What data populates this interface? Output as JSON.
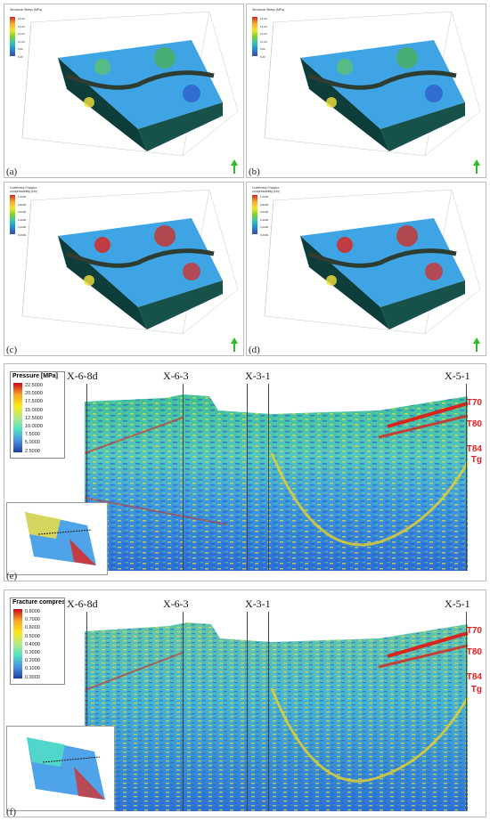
{
  "panels_3d": [
    {
      "label": "(a)",
      "legend_title": "Structural\nStress (MPa)",
      "ticks": [
        "16.00",
        "14.00",
        "12.00",
        "10.00",
        "8.00",
        "6.00"
      ]
    },
    {
      "label": "(b)",
      "legend_title": "Structural\nStress (MPa)",
      "ticks": [
        "16.00",
        "14.00",
        "12.00",
        "10.00",
        "8.00",
        "6.00"
      ]
    },
    {
      "label": "(c)",
      "legend_title": "Coefficient\nFracture compressibility (l/m)",
      "ticks": [
        "1.0000",
        "0.8000",
        "0.6000",
        "0.4000",
        "0.2000",
        "0.0000"
      ]
    },
    {
      "label": "(d)",
      "legend_title": "Coefficient\nFracture compressibility (l/m)",
      "ticks": [
        "1.0000",
        "0.8000",
        "0.6000",
        "0.4000",
        "0.2000",
        "0.0000"
      ]
    }
  ],
  "section_e": {
    "label": "(e)",
    "legend_title": "Pressure [MPa]",
    "ticks": [
      "22.5000",
      "20.0000",
      "17.5000",
      "15.0000",
      "12.5000",
      "10.0000",
      "7.5000",
      "5.0000",
      "2.5000"
    ],
    "wells": [
      "X-6-8d",
      "X-6-3",
      "X-3-1",
      "X-5-1"
    ],
    "horizons": [
      "T70",
      "T80",
      "T84",
      "Tg"
    ]
  },
  "section_f": {
    "label": "(f)",
    "legend_title": "Fracture compres",
    "ticks": [
      "0.8000",
      "0.7000",
      "0.6000",
      "0.5000",
      "0.4000",
      "0.3000",
      "0.2000",
      "0.1000",
      "0.0000"
    ],
    "wells": [
      "X-6-8d",
      "X-6-3",
      "X-3-1",
      "X-5-1"
    ],
    "horizons": [
      "T70",
      "T80",
      "T84",
      "Tg"
    ]
  },
  "colors": {
    "red": "#e02020",
    "green_arrow": "#2bbf2b"
  }
}
